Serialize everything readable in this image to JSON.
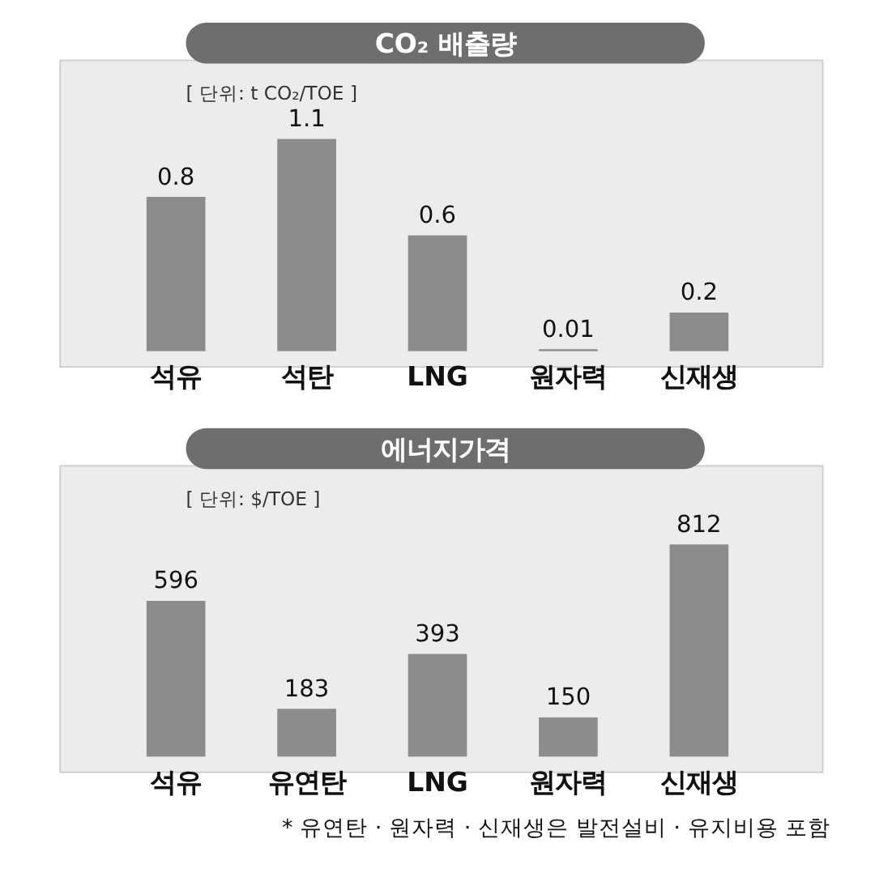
{
  "chart_data": [
    {
      "type": "bar",
      "title": "CO₂ 배출량",
      "subtitle": "[ 단위: t CO₂/TOE ]",
      "categories": [
        "석유",
        "석탄",
        "LNG",
        "원자력",
        "신재생"
      ],
      "values": [
        0.8,
        1.1,
        0.6,
        0.01,
        0.2
      ],
      "color": "#8c8c8c",
      "data_labels": true
    },
    {
      "type": "bar",
      "title": "에너지가격",
      "subtitle": "[ 단위: $/TOE ]",
      "categories": [
        "석유",
        "유연탄",
        "LNG",
        "원자력",
        "신재생"
      ],
      "values": [
        596,
        183,
        393,
        150,
        812
      ],
      "color": "#8c8c8c",
      "data_labels": true,
      "annotations": [
        "* 유연탄 · 원자력 · 신재생은 발전설비 · 유지비용 포함"
      ]
    }
  ]
}
